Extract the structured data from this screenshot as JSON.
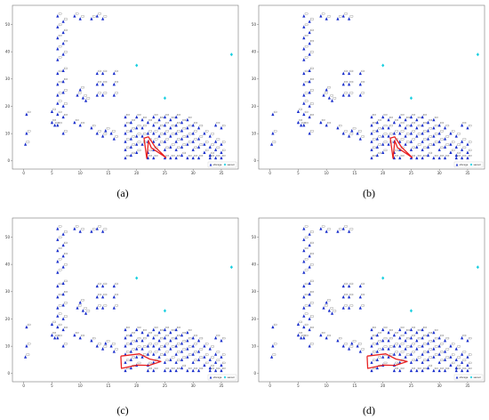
{
  "panels": [
    {
      "caption": "(a)",
      "route": [
        [
          21.8,
          0.8
        ],
        [
          21.3,
          8.3
        ],
        [
          22.1,
          8.8
        ],
        [
          23.3,
          5.0
        ],
        [
          25.2,
          1.2
        ],
        [
          22.6,
          4.8
        ],
        [
          22.1,
          7.4
        ],
        [
          21.8,
          0.8
        ]
      ]
    },
    {
      "caption": "(b)",
      "route": [
        [
          21.8,
          0.8
        ],
        [
          21.3,
          8.3
        ],
        [
          22.1,
          8.8
        ],
        [
          23.3,
          5.0
        ],
        [
          25.2,
          1.2
        ],
        [
          22.6,
          4.8
        ],
        [
          22.1,
          7.4
        ],
        [
          21.8,
          0.8
        ]
      ]
    },
    {
      "caption": "(c)",
      "route": [
        [
          17.2,
          6.4
        ],
        [
          20.5,
          7.2
        ],
        [
          22.3,
          5.3
        ],
        [
          24.3,
          4.4
        ],
        [
          22.2,
          3.0
        ],
        [
          20.1,
          3.1
        ],
        [
          17.3,
          1.9
        ],
        [
          17.2,
          6.4
        ]
      ]
    },
    {
      "caption": "(d)",
      "route": [
        [
          17.2,
          6.4
        ],
        [
          20.5,
          7.2
        ],
        [
          22.3,
          5.3
        ],
        [
          24.3,
          4.4
        ],
        [
          22.2,
          3.0
        ],
        [
          20.1,
          3.1
        ],
        [
          17.3,
          1.9
        ],
        [
          17.2,
          6.4
        ]
      ]
    }
  ],
  "chart_data": {
    "type": "scatter",
    "title": "",
    "xlabel": "",
    "ylabel": "",
    "xlim": [
      -2,
      38
    ],
    "ylim": [
      -3,
      57
    ],
    "xticks": [
      "0",
      "5",
      "10",
      "15",
      "20",
      "25",
      "30",
      "35"
    ],
    "yticks": [
      "0",
      "10",
      "20",
      "30",
      "40",
      "50"
    ],
    "grid": false,
    "legend_position": "bottom-right",
    "legend": [
      "storage",
      "sensor"
    ],
    "colors": {
      "nodes": "#1a2fcc",
      "sensors": "#19cfe0",
      "route": "#e82222"
    },
    "series": [
      {
        "name": "storage",
        "points": [
          [
            0.5,
            17
          ],
          [
            0.5,
            10
          ],
          [
            0.3,
            6
          ],
          [
            5,
            18
          ],
          [
            5,
            14
          ],
          [
            5.5,
            13
          ],
          [
            6,
            53
          ],
          [
            6,
            49
          ],
          [
            6,
            45
          ],
          [
            6,
            41
          ],
          [
            6,
            37
          ],
          [
            6,
            32
          ],
          [
            6,
            28
          ],
          [
            6,
            24
          ],
          [
            6,
            21
          ],
          [
            6,
            17
          ],
          [
            6,
            13
          ],
          [
            7,
            51
          ],
          [
            7,
            47
          ],
          [
            7,
            43
          ],
          [
            7,
            39
          ],
          [
            7,
            33
          ],
          [
            7,
            29
          ],
          [
            7,
            25
          ],
          [
            7,
            20
          ],
          [
            7,
            16
          ],
          [
            7,
            10
          ],
          [
            9,
            53
          ],
          [
            10,
            52
          ],
          [
            9.5,
            24
          ],
          [
            10,
            26
          ],
          [
            10.5,
            23
          ],
          [
            9,
            14
          ],
          [
            10,
            13
          ],
          [
            12,
            52
          ],
          [
            13,
            53
          ],
          [
            14,
            52
          ],
          [
            11,
            22
          ],
          [
            13,
            32
          ],
          [
            13,
            28
          ],
          [
            13,
            24
          ],
          [
            14,
            32
          ],
          [
            14,
            28
          ],
          [
            14,
            24
          ],
          [
            12,
            12
          ],
          [
            13,
            10
          ],
          [
            14,
            9
          ],
          [
            14.5,
            11
          ],
          [
            16,
            32
          ],
          [
            16,
            28
          ],
          [
            16,
            24
          ],
          [
            15.5,
            10
          ],
          [
            16,
            8
          ],
          [
            18,
            16
          ],
          [
            18,
            13
          ],
          [
            18,
            10
          ],
          [
            18,
            7
          ],
          [
            18,
            4
          ],
          [
            18,
            1
          ],
          [
            19,
            14
          ],
          [
            19,
            11
          ],
          [
            19,
            8
          ],
          [
            19,
            5
          ],
          [
            19,
            2
          ],
          [
            20,
            16
          ],
          [
            20,
            12
          ],
          [
            20,
            9
          ],
          [
            20,
            6
          ],
          [
            20,
            3
          ],
          [
            21,
            15
          ],
          [
            21,
            12
          ],
          [
            21,
            9
          ],
          [
            21,
            6
          ],
          [
            22,
            14
          ],
          [
            22,
            10
          ],
          [
            22,
            7
          ],
          [
            22,
            3
          ],
          [
            22,
            1
          ],
          [
            23,
            16
          ],
          [
            23,
            13
          ],
          [
            23,
            10
          ],
          [
            23,
            7
          ],
          [
            23,
            4
          ],
          [
            23,
            1
          ],
          [
            24,
            15
          ],
          [
            24,
            12
          ],
          [
            24,
            9
          ],
          [
            24,
            6
          ],
          [
            25,
            16
          ],
          [
            25,
            13
          ],
          [
            25,
            10
          ],
          [
            25,
            7
          ],
          [
            25,
            4
          ],
          [
            25,
            1
          ],
          [
            26,
            15
          ],
          [
            26,
            12
          ],
          [
            26,
            9
          ],
          [
            26,
            5
          ],
          [
            26,
            1
          ],
          [
            27,
            16
          ],
          [
            27,
            13
          ],
          [
            27,
            10
          ],
          [
            27,
            7
          ],
          [
            27,
            4
          ],
          [
            27,
            1
          ],
          [
            28,
            14
          ],
          [
            28,
            11
          ],
          [
            28,
            8
          ],
          [
            28,
            5
          ],
          [
            28,
            2
          ],
          [
            29,
            15
          ],
          [
            29,
            12
          ],
          [
            29,
            9
          ],
          [
            29,
            6
          ],
          [
            29,
            1
          ],
          [
            30,
            13
          ],
          [
            30,
            10
          ],
          [
            30,
            7
          ],
          [
            30,
            4
          ],
          [
            30,
            1
          ],
          [
            31,
            12
          ],
          [
            31,
            8
          ],
          [
            31,
            5
          ],
          [
            31,
            1
          ],
          [
            32,
            10
          ],
          [
            32,
            6
          ],
          [
            32,
            3
          ],
          [
            33,
            9
          ],
          [
            33,
            5
          ],
          [
            33,
            2
          ],
          [
            33,
            1
          ],
          [
            34,
            13
          ],
          [
            34,
            7
          ],
          [
            34,
            4
          ],
          [
            34,
            1
          ],
          [
            35,
            12
          ],
          [
            35,
            6
          ],
          [
            35,
            3
          ],
          [
            35,
            1
          ]
        ]
      },
      {
        "name": "sensor",
        "points": [
          [
            20,
            35
          ],
          [
            25,
            23
          ],
          [
            36.8,
            39
          ]
        ]
      }
    ]
  }
}
